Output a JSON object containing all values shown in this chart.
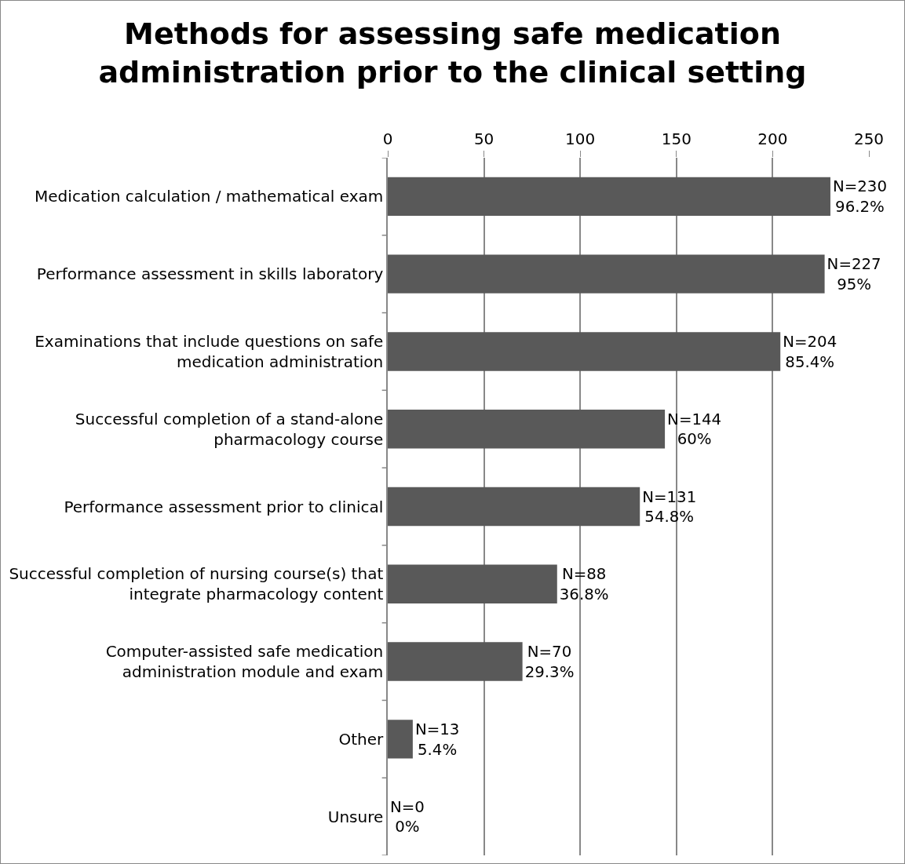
{
  "chart_data": {
    "type": "bar",
    "orientation": "horizontal",
    "title": "Methods for assessing safe medication\nadministration prior to the clinical setting",
    "categories": [
      "Medication calculation / mathematical exam",
      "Performance assessment in skills laboratory",
      "Examinations that include questions on safe medication administration",
      "Successful completion of a stand-alone pharmacology course",
      "Performance assessment prior to clinical",
      "Successful completion of nursing course(s) that integrate pharmacology content",
      "Computer-assisted safe medication administration module and exam",
      "Other",
      "Unsure"
    ],
    "values": [
      230,
      227,
      204,
      144,
      131,
      88,
      70,
      13,
      0
    ],
    "value_labels": [
      "N=230\n96.2%",
      "N=227\n95%",
      "N=204\n85.4%",
      "N=144\n60%",
      "N=131\n54.8%",
      "N=88\n36.8%",
      "N=70\n29.3%",
      "N=13\n5.4%",
      "N=0\n0%"
    ],
    "color": "#595959",
    "xlim": [
      0,
      250
    ],
    "xticks": [
      0,
      50,
      100,
      150,
      200,
      250
    ],
    "grid": "x"
  }
}
